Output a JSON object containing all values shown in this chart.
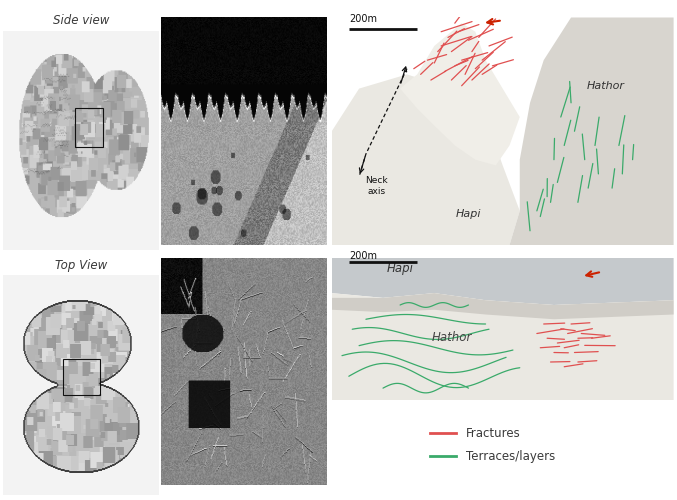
{
  "background_color": "#ffffff",
  "legend_items": [
    {
      "label": "Fractures",
      "color": "#e05050"
    },
    {
      "label": "Terraces/layers",
      "color": "#3aaa6a"
    }
  ],
  "panel_labels": {
    "top_left": "Side view",
    "bottom_left": "Top View"
  },
  "fracture_color": "#e05050",
  "terrace_color": "#3aaa6a",
  "neck_axis_color": "#222222",
  "arrow_color": "#cc2200",
  "text_color": "#3a3a3a",
  "map_bg_gray": "#9ca0a3",
  "map_body_light": "#dcdad4",
  "map_hapi_light": "#eae8e2",
  "map_hathor_med": "#c8c5be",
  "label_fontsize": 8.5,
  "annotation_fontsize": 7.5
}
